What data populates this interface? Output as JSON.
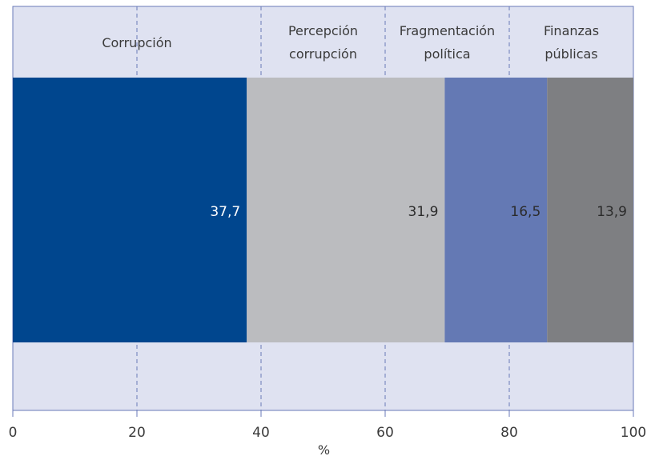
{
  "chart_data": {
    "type": "bar",
    "orientation": "horizontal-stacked",
    "xlabel": "%",
    "xlim": [
      0,
      100
    ],
    "xticks": [
      0,
      20,
      40,
      60,
      80,
      100
    ],
    "grid": "vertical dashed",
    "series": [
      {
        "name": "Corrupción",
        "value": 37.7,
        "value_label": "37,7",
        "color": "#00468e",
        "label_color": "#ffffff",
        "header_lines": [
          "Corrupción"
        ]
      },
      {
        "name": "Percepción corrupción",
        "value": 31.9,
        "value_label": "31,9",
        "color": "#bbbcbf",
        "label_color": "#2b2b2b",
        "header_lines": [
          "Percepción",
          "corrupción"
        ]
      },
      {
        "name": "Fragmentación política",
        "value": 16.5,
        "value_label": "16,5",
        "color": "#6479b4",
        "label_color": "#2b2b2b",
        "header_lines": [
          "Fragmentación",
          "política"
        ]
      },
      {
        "name": "Finanzas públicas",
        "value": 13.9,
        "value_label": "13,9",
        "color": "#7e7f82",
        "label_color": "#2b2b2b",
        "header_lines": [
          "Finanzas",
          "públicas"
        ]
      }
    ],
    "colors": {
      "plot_background": "#dfe2f1",
      "grid": "#6a7ab8",
      "axis": "#6a7ab8"
    }
  }
}
